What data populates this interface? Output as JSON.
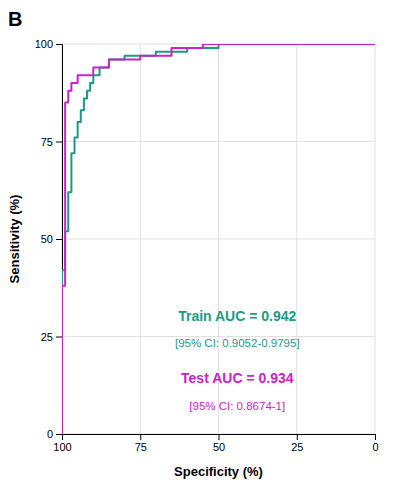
{
  "chart_data": {
    "type": "line",
    "title": "B",
    "x_label": "Specificity (%)",
    "y_label": "Sensitivity (%)",
    "xlim": [
      100,
      0
    ],
    "ylim": [
      0,
      100
    ],
    "xticks": [
      100,
      75,
      50,
      25,
      0
    ],
    "yticks": [
      0,
      25,
      50,
      75,
      100
    ],
    "grid": true,
    "series": [
      {
        "color": "#1a9b8a",
        "x": [
          100,
          100,
          99,
          99,
          98,
          98,
          97,
          97,
          97,
          96,
          96,
          95,
          95,
          94,
          94,
          93,
          93,
          92,
          92,
          91,
          91,
          90,
          90,
          88,
          88,
          85,
          85,
          80,
          80,
          70,
          70,
          60,
          60,
          50,
          50,
          30,
          20,
          10,
          0
        ],
        "values": [
          0,
          42,
          42,
          52,
          52,
          62,
          62,
          68,
          72,
          72,
          76,
          76,
          80,
          80,
          83,
          83,
          86,
          86,
          88,
          88,
          90,
          90,
          92,
          92,
          94,
          94,
          96,
          96,
          97,
          97,
          98,
          98,
          99,
          99,
          100,
          100,
          100,
          100,
          100
        ]
      },
      {
        "color": "#cc22cc",
        "x": [
          100,
          100,
          99,
          99,
          98,
          98,
          97,
          97,
          95,
          95,
          90,
          90,
          85,
          85,
          75,
          75,
          65,
          65,
          55,
          55,
          45,
          45,
          0
        ],
        "values": [
          0,
          38,
          38,
          85,
          85,
          88,
          88,
          90,
          90,
          92,
          92,
          94,
          94,
          96,
          96,
          97,
          97,
          99,
          99,
          100,
          100,
          100,
          100
        ]
      }
    ],
    "annotations": [
      {
        "text": "Train AUC = 0.942",
        "color": "#1a9b8a"
      },
      {
        "text": "[95% CI: 0.9052-0.9795]",
        "color": "#1a9b8a"
      },
      {
        "text": "Test AUC = 0.934",
        "color": "#cc22cc"
      },
      {
        "text": "[95% CI: 0.8674-1]",
        "color": "#cc22cc"
      }
    ]
  }
}
